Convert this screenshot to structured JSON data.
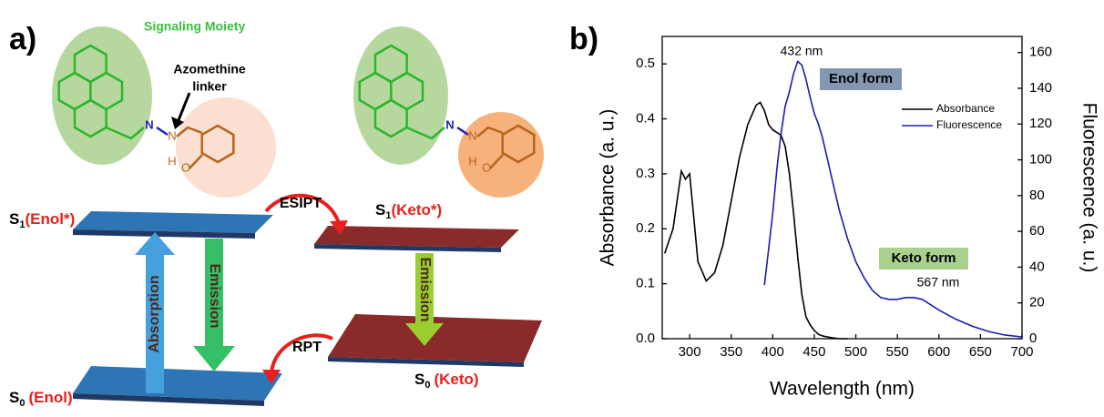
{
  "panel_a": {
    "label": "a)",
    "moiety": "Signaling Moiety",
    "linker": [
      "Azomethine",
      "linker"
    ],
    "molecules": [
      {
        "atoms": [
          "N",
          "N",
          "H",
          "O"
        ]
      },
      {
        "atoms": [
          "N",
          "N",
          "H",
          "O"
        ]
      }
    ],
    "levels": [
      {
        "symbol": "S",
        "subscript": "1",
        "state": "(Enol*)"
      },
      {
        "symbol": "S",
        "subscript": "0",
        "state": "(Enol)"
      },
      {
        "symbol": "S",
        "subscript": "1",
        "state": "(Keto*)"
      },
      {
        "symbol": "S",
        "subscript": "0",
        "state": "(Keto)"
      }
    ],
    "arrows": [
      "Absorption",
      "Emission",
      "Emission",
      "ESIPT",
      "RPT"
    ]
  },
  "chart_data": {
    "type": "line",
    "panel_label": "b)",
    "xlabel": "Wavelength (nm)",
    "ylabel": "Absorbance (a. u.)",
    "y2label": "Fluorescence (a. u.)",
    "x": [
      270,
      280,
      290,
      295,
      300,
      305,
      310,
      320,
      330,
      340,
      350,
      360,
      370,
      380,
      385,
      390,
      395,
      400,
      405,
      410,
      415,
      420,
      425,
      430,
      435,
      440,
      445,
      450,
      455,
      460,
      470,
      480,
      490,
      500,
      510,
      520,
      530,
      540,
      550,
      560,
      570,
      580,
      590,
      600,
      620,
      640,
      660,
      680,
      700
    ],
    "series": [
      {
        "name": "Absorbance",
        "color": "#000000",
        "values": [
          0.155,
          0.2,
          0.305,
          0.29,
          0.3,
          0.22,
          0.14,
          0.105,
          0.12,
          0.17,
          0.25,
          0.33,
          0.39,
          0.425,
          0.43,
          0.415,
          0.39,
          0.38,
          0.375,
          0.37,
          0.35,
          0.3,
          0.23,
          0.15,
          0.08,
          0.04,
          0.025,
          0.015,
          0.008,
          0.005,
          0.002,
          0,
          0,
          null,
          null,
          null,
          null,
          null,
          null,
          null,
          null,
          null,
          null,
          null,
          null,
          null,
          null,
          null,
          null
        ]
      },
      {
        "name": "Fluorescence",
        "color": "#1c1cb0",
        "axis": "y2",
        "values": [
          null,
          null,
          null,
          null,
          null,
          null,
          null,
          null,
          null,
          null,
          null,
          null,
          null,
          null,
          null,
          30,
          50,
          70,
          95,
          115,
          130,
          138,
          148,
          155,
          153,
          145,
          135,
          126,
          120,
          112,
          92,
          72,
          56,
          43,
          34,
          27,
          23,
          22,
          22,
          23,
          23,
          22,
          19,
          16,
          11,
          7,
          4,
          2,
          1
        ]
      }
    ],
    "xlim": [
      267,
      700
    ],
    "xticks": [
      300,
      350,
      400,
      450,
      500,
      550,
      600,
      650,
      700
    ],
    "ylim": [
      0,
      0.55
    ],
    "yticks": [
      {
        "value": 0,
        "label": "0.0"
      },
      0.1,
      0.2,
      0.3,
      0.4,
      0.5
    ],
    "y2lim": [
      0,
      169
    ],
    "y2ticks": [
      0,
      20,
      40,
      60,
      80,
      100,
      120,
      140,
      160
    ],
    "legend": "upper right",
    "annotations": [
      "432 nm",
      "Enol form",
      "Keto form",
      "567 nm"
    ]
  }
}
